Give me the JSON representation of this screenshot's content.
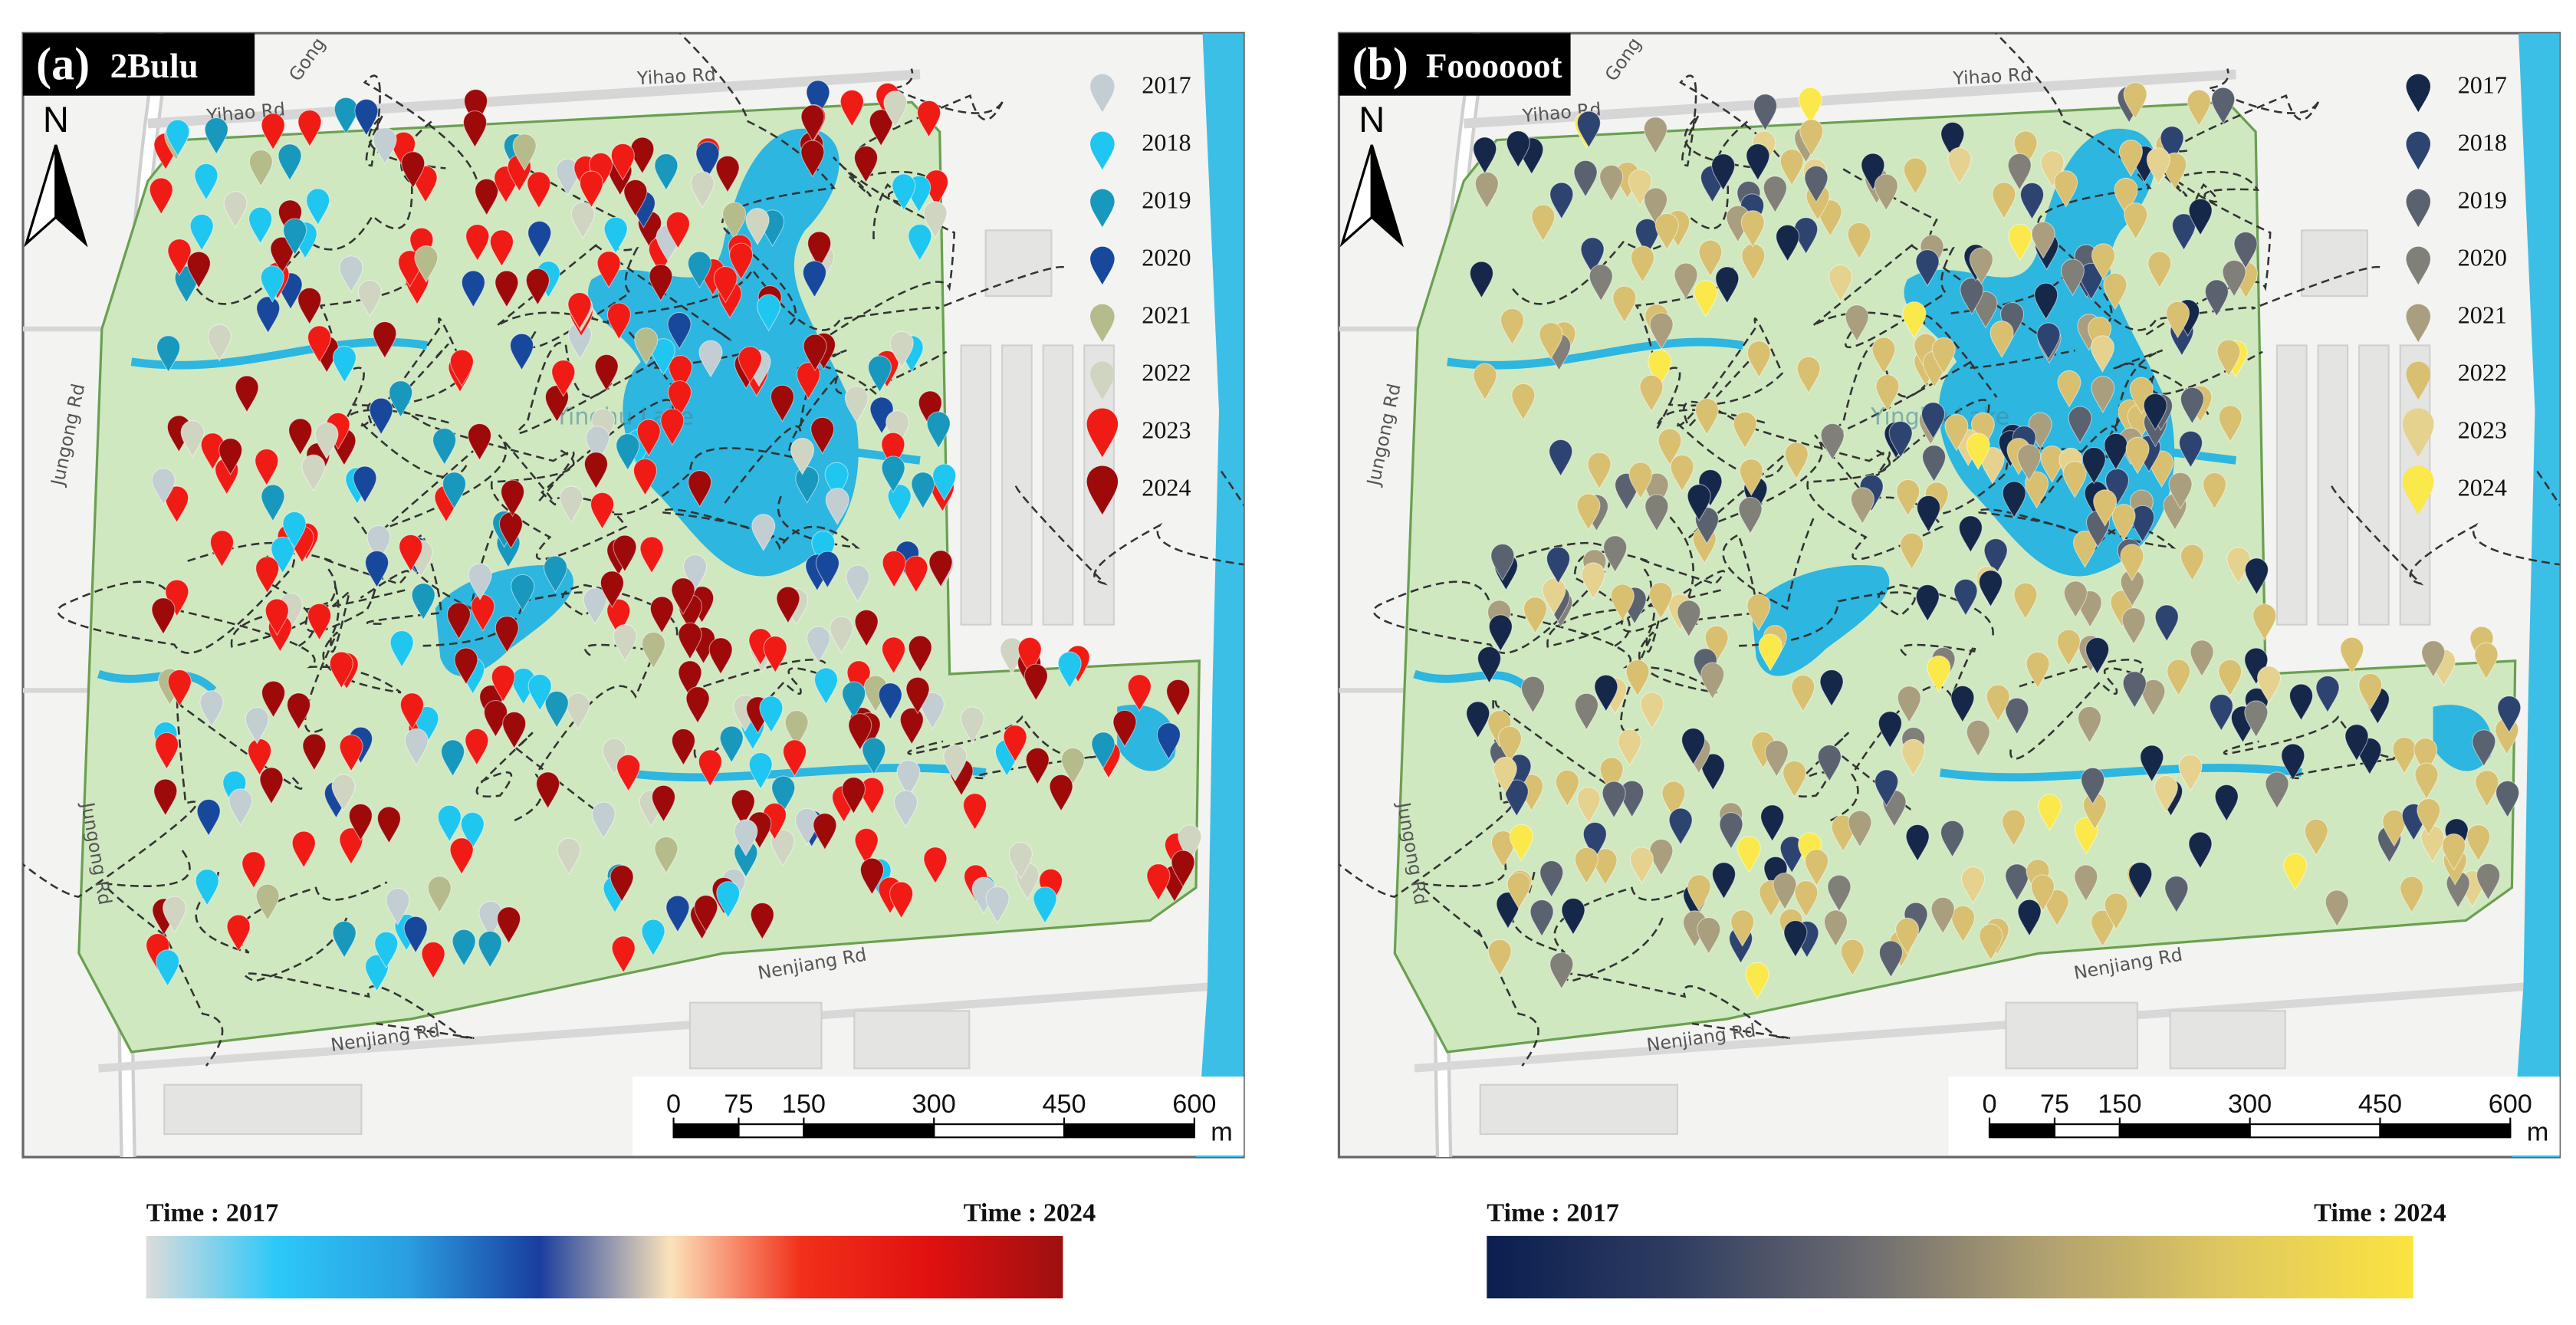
{
  "panels": [
    {
      "label": "(a)",
      "title": "2Bulu",
      "roads": [
        "Yihao Rd",
        "Yihao Rd",
        "Gong",
        "Jungong Rd",
        "Jungong Rd",
        "Nenjiang Rd",
        "Nenjiang Rd"
      ],
      "lake": "Yinghu Lake",
      "north": "N",
      "legend": [
        {
          "year": "2017",
          "color": "#c3ced2"
        },
        {
          "year": "2018",
          "color": "#1fc6ef"
        },
        {
          "year": "2019",
          "color": "#1898bd"
        },
        {
          "year": "2020",
          "color": "#17489c"
        },
        {
          "year": "2021",
          "color": "#b5bb8a"
        },
        {
          "year": "2022",
          "color": "#d0d5c2"
        },
        {
          "year": "2023",
          "color": "#f01b14"
        },
        {
          "year": "2024",
          "color": "#9e0a0a"
        }
      ],
      "scale_bar": {
        "ticks": [
          0,
          75,
          150,
          300,
          450,
          600
        ],
        "unit": "m"
      },
      "colorbar": {
        "start": "Time : 2017",
        "end": "Time : 2024",
        "colors": [
          "#dcdcdc",
          "#2cc8f8",
          "#2a9ee0",
          "#1a3e9e",
          "#fbe3ba",
          "#f2301a",
          "#e01010",
          "#9e1010"
        ]
      }
    },
    {
      "label": "(b)",
      "title": "Foooooot",
      "roads": [
        "Yihao Rd",
        "Yihao Rd",
        "Gong",
        "Jungong Rd",
        "Jungong Rd",
        "Nenjiang Rd",
        "Nenjiang Rd"
      ],
      "lake": "Yinghu Lake",
      "north": "N",
      "legend": [
        {
          "year": "2017",
          "color": "#15284a"
        },
        {
          "year": "2018",
          "color": "#2d4470"
        },
        {
          "year": "2019",
          "color": "#5a6270"
        },
        {
          "year": "2020",
          "color": "#807f78"
        },
        {
          "year": "2021",
          "color": "#a99f7e"
        },
        {
          "year": "2022",
          "color": "#d8c070"
        },
        {
          "year": "2023",
          "color": "#e4d28e"
        },
        {
          "year": "2024",
          "color": "#fbe84a"
        }
      ],
      "scale_bar": {
        "ticks": [
          0,
          75,
          150,
          300,
          450,
          600
        ],
        "unit": "m"
      },
      "colorbar": {
        "start": "Time : 2017",
        "end": "Time : 2024",
        "colors": [
          "#0a1e50",
          "#2e3c60",
          "#6a6a70",
          "#b0a070",
          "#e0c860",
          "#fbe440"
        ]
      }
    }
  ]
}
